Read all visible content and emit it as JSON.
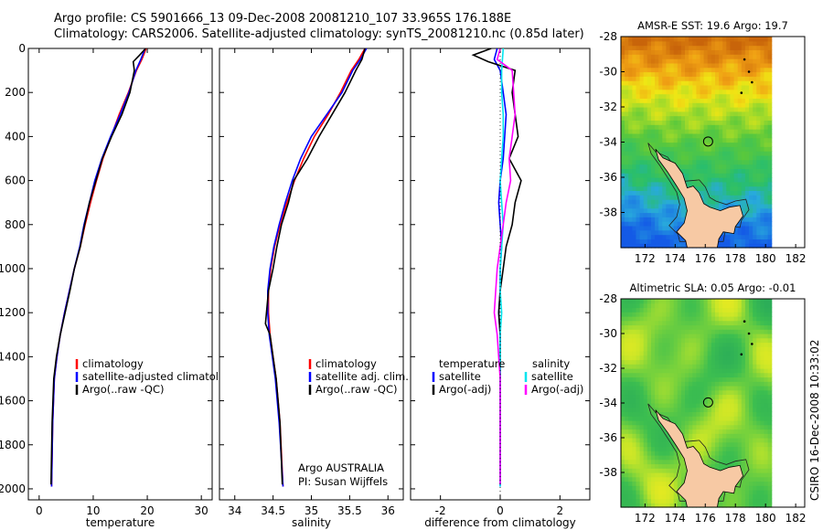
{
  "header": {
    "line1": "Argo profile: CS 5901666_13 09-Dec-2008 20081210_107 33.965S 176.188E",
    "line2": "Climatology: CARS2006. Satellite-adjusted climatology: synTS_20081210.nc (0.85d later)"
  },
  "side_label": "CSIRO 16-Dec-2008 10:33:02",
  "colors": {
    "climatology": "#ff0000",
    "satellite": "#0000ff",
    "argo": "#000000",
    "salinity_satellite": "#00e5ee",
    "salinity_argo": "#ff00ff",
    "land": "#f7c9a4"
  },
  "chart_data": [
    {
      "id": "temperature",
      "type": "line",
      "xlabel": "temperature",
      "ylabel": "",
      "xlim": [
        -2,
        32
      ],
      "ylim": [
        2050,
        0
      ],
      "xticks": [
        "0",
        "10",
        "20",
        "30"
      ],
      "xtick_values": [
        0,
        10,
        20,
        30
      ],
      "yticks": [
        "0",
        "200",
        "400",
        "600",
        "800",
        "1000",
        "1200",
        "1400",
        "1600",
        "1800",
        "2000"
      ],
      "ytick_values": [
        0,
        200,
        400,
        600,
        800,
        1000,
        1200,
        1400,
        1600,
        1800,
        2000
      ],
      "legend": [
        "climatology",
        "satellite-adjusted climatology",
        "Argo(..raw -QC)"
      ],
      "series": [
        {
          "name": "climatology",
          "color": "#ff0000",
          "x": [
            19.8,
            19.0,
            18.0,
            16.5,
            14.8,
            13.3,
            11.8,
            10.6,
            9.5,
            8.5,
            7.6,
            6.5,
            5.6,
            4.7,
            3.9,
            3.3,
            2.8,
            2.5,
            2.3
          ],
          "y": [
            0,
            50,
            100,
            200,
            300,
            400,
            500,
            600,
            700,
            800,
            900,
            1000,
            1100,
            1200,
            1300,
            1400,
            1500,
            1700,
            1990
          ]
        },
        {
          "name": "satellite-adjusted climatology",
          "color": "#0000ff",
          "x": [
            19.6,
            18.8,
            17.9,
            16.6,
            15.0,
            13.2,
            11.6,
            10.3,
            9.3,
            8.3,
            7.5,
            6.5,
            5.6,
            4.7,
            3.9,
            3.3,
            2.8,
            2.5,
            2.3
          ],
          "y": [
            0,
            50,
            100,
            200,
            300,
            400,
            500,
            600,
            700,
            800,
            900,
            1000,
            1100,
            1200,
            1300,
            1400,
            1500,
            1700,
            1990
          ]
        },
        {
          "name": "Argo(..raw -QC)",
          "color": "#000000",
          "x": [
            19.7,
            18.6,
            17.4,
            17.6,
            16.8,
            15.3,
            13.4,
            11.7,
            10.5,
            9.3,
            8.4,
            7.6,
            6.5,
            5.7,
            4.8,
            3.9,
            3.2,
            2.7,
            2.4,
            2.2
          ],
          "y": [
            0,
            30,
            60,
            100,
            200,
            300,
            400,
            500,
            600,
            700,
            800,
            900,
            1000,
            1100,
            1200,
            1300,
            1400,
            1500,
            1700,
            1980
          ]
        }
      ]
    },
    {
      "id": "salinity",
      "type": "line",
      "xlabel": "salinity",
      "xlim": [
        33.8,
        36.2
      ],
      "ylim": [
        2050,
        0
      ],
      "xticks": [
        "34",
        "34.5",
        "35",
        "35.5",
        "36"
      ],
      "xtick_values": [
        34,
        34.5,
        35,
        35.5,
        36
      ],
      "legend": [
        "climatology",
        "satellite adj. clim.",
        "Argo(..raw -QC)"
      ],
      "annotation": [
        "Argo AUSTRALIA",
        "PI: Susan Wijffels"
      ],
      "series": [
        {
          "name": "climatology",
          "color": "#ff0000",
          "x": [
            35.7,
            35.62,
            35.52,
            35.38,
            35.22,
            35.04,
            34.9,
            34.78,
            34.68,
            34.59,
            34.52,
            34.47,
            34.44,
            34.44,
            34.46,
            34.5,
            34.54,
            34.59,
            34.63
          ],
          "y": [
            0,
            50,
            100,
            200,
            300,
            400,
            500,
            600,
            700,
            800,
            900,
            1000,
            1100,
            1200,
            1300,
            1400,
            1500,
            1700,
            1990
          ]
        },
        {
          "name": "satellite adj. clim.",
          "color": "#0000ff",
          "x": [
            35.72,
            35.64,
            35.54,
            35.4,
            35.2,
            35.0,
            34.86,
            34.75,
            34.66,
            34.58,
            34.51,
            34.46,
            34.43,
            34.43,
            34.45,
            34.49,
            34.53,
            34.58,
            34.63
          ],
          "y": [
            0,
            50,
            100,
            200,
            300,
            400,
            500,
            600,
            700,
            800,
            900,
            1000,
            1100,
            1200,
            1300,
            1400,
            1500,
            1700,
            1990
          ]
        },
        {
          "name": "Argo(..raw -QC)",
          "color": "#000000",
          "x": [
            35.7,
            35.66,
            35.58,
            35.44,
            35.27,
            35.1,
            34.95,
            34.77,
            34.7,
            34.61,
            34.55,
            34.5,
            34.44,
            34.4,
            34.46,
            34.5,
            34.54,
            34.59,
            34.62
          ],
          "y": [
            0,
            50,
            100,
            200,
            300,
            400,
            500,
            600,
            700,
            800,
            900,
            1000,
            1100,
            1250,
            1300,
            1400,
            1500,
            1700,
            1980
          ]
        }
      ]
    },
    {
      "id": "difference",
      "type": "line",
      "xlabel": "difference from climatology",
      "xlim": [
        -3,
        3
      ],
      "ylim": [
        2050,
        0
      ],
      "xticks": [
        "-2",
        "0",
        "2"
      ],
      "xtick_values": [
        -2,
        0,
        2
      ],
      "legend_headers": [
        "temperature",
        "salinity"
      ],
      "legend": [
        "satellite",
        "Argo(-adj)",
        "satellite",
        "Argo(-adj)"
      ],
      "series": [
        {
          "name": "temperature satellite",
          "color": "#0000ff",
          "x": [
            -0.1,
            -0.2,
            0.0,
            0.1,
            0.2,
            0.15,
            0.1,
            0.0,
            -0.05,
            0.0,
            0.05,
            0.0,
            0.0,
            -0.05,
            0.0,
            0.0,
            0.0,
            0.0
          ],
          "y": [
            0,
            50,
            100,
            200,
            300,
            400,
            500,
            600,
            700,
            800,
            900,
            1000,
            1100,
            1200,
            1300,
            1500,
            1700,
            1990
          ]
        },
        {
          "name": "temperature Argo(-adj)",
          "color": "#000000",
          "x": [
            -0.3,
            -0.9,
            -0.4,
            0.5,
            0.4,
            0.6,
            0.3,
            0.7,
            0.5,
            0.4,
            0.2,
            0.1,
            0.0,
            -0.05,
            0.0,
            0.0,
            0.0,
            0.0
          ],
          "y": [
            0,
            30,
            60,
            100,
            200,
            400,
            500,
            600,
            700,
            800,
            900,
            1000,
            1100,
            1200,
            1300,
            1500,
            1700,
            1980
          ]
        },
        {
          "name": "salinity satellite",
          "color": "#00e5ee",
          "x": [
            0.1,
            0.05,
            0.05,
            0.1,
            0.1,
            0.05,
            0.0,
            0.05,
            0.1,
            0.05,
            0.0,
            0.0,
            0.05,
            0.0,
            0.0,
            0.0,
            0.0
          ],
          "y": [
            0,
            100,
            200,
            300,
            400,
            500,
            600,
            700,
            800,
            900,
            1000,
            1100,
            1200,
            1300,
            1500,
            1700,
            1990
          ]
        },
        {
          "name": "salinity Argo(-adj)",
          "color": "#ff00ff",
          "x": [
            0.0,
            -0.1,
            0.4,
            0.45,
            0.5,
            0.4,
            0.3,
            0.35,
            0.2,
            0.1,
            0.0,
            -0.1,
            -0.2,
            -0.1,
            0.0,
            0.0,
            0.0
          ],
          "y": [
            0,
            50,
            100,
            200,
            300,
            400,
            500,
            600,
            700,
            800,
            900,
            1000,
            1200,
            1300,
            1500,
            1700,
            1980
          ]
        }
      ]
    },
    {
      "id": "sst_map",
      "type": "heatmap",
      "title": "AMSR-E SST: 19.6 Argo: 19.7",
      "xlim": [
        170.4,
        182.6
      ],
      "ylim": [
        -40,
        -28
      ],
      "xticks": [
        "172",
        "174",
        "176",
        "178",
        "180",
        "182"
      ],
      "xtick_values": [
        172,
        174,
        176,
        178,
        180,
        182
      ],
      "yticks": [
        "-28",
        "-30",
        "-32",
        "-34",
        "-36",
        "-38"
      ],
      "ytick_values": [
        -28,
        -30,
        -32,
        -34,
        -36,
        -38
      ],
      "data_extent_lon": [
        170.4,
        180.2
      ],
      "argo_position": [
        176.188,
        -33.965
      ]
    },
    {
      "id": "sla_map",
      "type": "heatmap",
      "title": "Altimetric SLA: 0.05 Argo: -0.01",
      "xlim": [
        170.4,
        182.6
      ],
      "ylim": [
        -40,
        -28
      ],
      "xticks": [
        "172",
        "174",
        "176",
        "178",
        "180",
        "182"
      ],
      "xtick_values": [
        172,
        174,
        176,
        178,
        180,
        182
      ],
      "yticks": [
        "-28",
        "-30",
        "-32",
        "-34",
        "-36",
        "-38"
      ],
      "ytick_values": [
        -28,
        -30,
        -32,
        -34,
        -36,
        -38
      ],
      "data_extent_lon": [
        170.4,
        180.2
      ],
      "argo_position": [
        176.188,
        -33.965
      ]
    }
  ]
}
